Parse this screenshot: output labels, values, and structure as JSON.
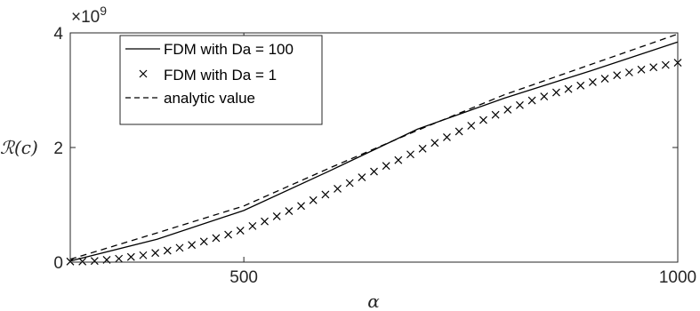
{
  "chart_data": {
    "type": "line",
    "xlabel": "α",
    "ylabel": "ℛ(c)",
    "y_exponent_label": "×10",
    "y_exponent_power": "9",
    "xlim": [
      300,
      1000
    ],
    "ylim": [
      0,
      4
    ],
    "y_units_scale": 1000000000,
    "x_ticks": [
      500,
      1000
    ],
    "x_tick_labels": [
      "500",
      "1000"
    ],
    "y_ticks": [
      0,
      2,
      4
    ],
    "y_tick_labels": [
      "0",
      "2",
      "4"
    ],
    "grid": false,
    "legend_placement": "top-left",
    "series": [
      {
        "name": "FDM with Da = 100",
        "style": "solid",
        "x": [
          300,
          400,
          500,
          600,
          700,
          800,
          900,
          1000
        ],
        "y": [
          0.02,
          0.4,
          0.9,
          1.6,
          2.32,
          2.86,
          3.34,
          3.84
        ]
      },
      {
        "name": "FDM with Da = 1",
        "style": "marker-x",
        "x": [
          300,
          314,
          328,
          342,
          356,
          370,
          384,
          398,
          412,
          426,
          440,
          454,
          468,
          482,
          496,
          510,
          524,
          538,
          552,
          566,
          580,
          594,
          608,
          622,
          636,
          650,
          664,
          678,
          692,
          706,
          720,
          734,
          748,
          762,
          776,
          790,
          804,
          818,
          832,
          846,
          860,
          874,
          888,
          902,
          916,
          930,
          944,
          958,
          972,
          986,
          1000
        ],
        "y": [
          0.01,
          0.01,
          0.02,
          0.04,
          0.06,
          0.09,
          0.12,
          0.16,
          0.2,
          0.25,
          0.3,
          0.36,
          0.42,
          0.48,
          0.55,
          0.63,
          0.71,
          0.8,
          0.89,
          0.98,
          1.08,
          1.18,
          1.28,
          1.38,
          1.48,
          1.58,
          1.68,
          1.78,
          1.88,
          1.98,
          2.08,
          2.18,
          2.28,
          2.38,
          2.48,
          2.57,
          2.66,
          2.74,
          2.82,
          2.89,
          2.96,
          3.02,
          3.08,
          3.14,
          3.2,
          3.26,
          3.31,
          3.36,
          3.4,
          3.44,
          3.48
        ]
      },
      {
        "name": "analytic value",
        "style": "dashed",
        "x": [
          300,
          400,
          500,
          600,
          700,
          800,
          900,
          1000
        ],
        "y": [
          0.05,
          0.51,
          0.98,
          1.65,
          2.3,
          2.92,
          3.45,
          3.98
        ]
      }
    ]
  }
}
